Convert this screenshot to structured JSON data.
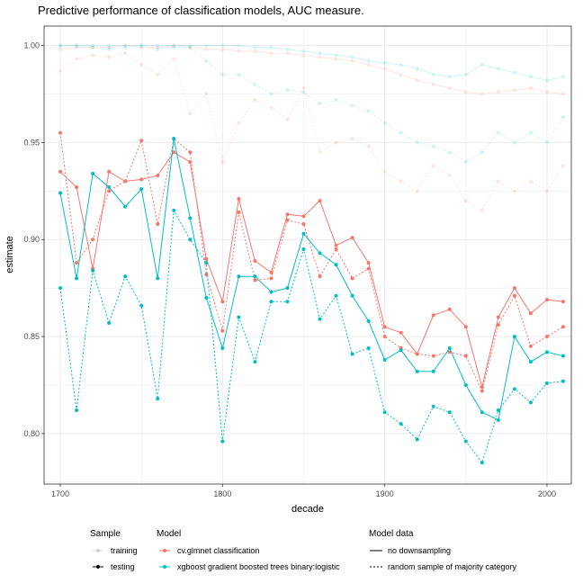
{
  "colors": {
    "red": "#F8766D",
    "teal": "#00BFC4",
    "grid": "#ebebeb",
    "panel_border": "#333333"
  },
  "chart_data": {
    "type": "line",
    "title": "Predictive performance of classification models, AUC measure.",
    "xlabel": "decade",
    "ylabel": "estimate",
    "xlim": [
      1690,
      2015
    ],
    "ylim": [
      0.774,
      1.01
    ],
    "xticks": [
      "1700",
      "1800",
      "1900",
      "2000"
    ],
    "yticks": [
      "0.80",
      "0.85",
      "0.90",
      "0.95",
      "1.00"
    ],
    "grid": true,
    "legend": {
      "position": "bottom",
      "groups": [
        {
          "title": "Sample",
          "items": [
            "training",
            "testing"
          ]
        },
        {
          "title": "Model",
          "items": [
            "cv.glmnet classification",
            "xgboost gradient boosted trees binary:logistic"
          ]
        },
        {
          "title": "Model data",
          "items": [
            "no downsampling",
            "random sample of majority category"
          ]
        }
      ]
    },
    "x": [
      1700,
      1710,
      1720,
      1730,
      1740,
      1750,
      1760,
      1770,
      1780,
      1790,
      1800,
      1810,
      1820,
      1830,
      1840,
      1850,
      1860,
      1870,
      1880,
      1890,
      1900,
      1910,
      1920,
      1930,
      1940,
      1950,
      1960,
      1970,
      1980,
      1990,
      2000,
      2010
    ],
    "series": [
      {
        "model": "cv.glmnet classification",
        "sample": "training",
        "data": "no downsampling",
        "values": [
          0.998,
          0.999,
          0.999,
          0.999,
          1.0,
          0.999,
          0.999,
          1.0,
          0.999,
          0.998,
          0.998,
          0.997,
          0.997,
          0.996,
          0.996,
          0.995,
          0.994,
          0.993,
          0.992,
          0.99,
          0.988,
          0.985,
          0.982,
          0.98,
          0.978,
          0.976,
          0.975,
          0.976,
          0.977,
          0.978,
          0.976,
          0.975
        ]
      },
      {
        "model": "cv.glmnet classification",
        "sample": "training",
        "data": "random sample of majority category",
        "values": [
          0.987,
          0.993,
          0.995,
          0.994,
          0.996,
          0.99,
          0.985,
          0.993,
          0.965,
          0.975,
          0.94,
          0.96,
          0.972,
          0.968,
          0.962,
          0.978,
          0.945,
          0.95,
          0.952,
          0.948,
          0.935,
          0.93,
          0.925,
          0.938,
          0.933,
          0.92,
          0.915,
          0.93,
          0.925,
          0.93,
          0.925,
          0.938
        ]
      },
      {
        "model": "xgboost gradient boosted trees binary:logistic",
        "sample": "training",
        "data": "no downsampling",
        "values": [
          1.0,
          1.0,
          1.0,
          1.0,
          1.0,
          1.0,
          1.0,
          1.0,
          1.0,
          1.0,
          1.0,
          1.0,
          0.999,
          0.999,
          0.998,
          0.997,
          0.996,
          0.995,
          0.994,
          0.992,
          0.991,
          0.99,
          0.988,
          0.985,
          0.984,
          0.985,
          0.99,
          0.988,
          0.986,
          0.984,
          0.982,
          0.984
        ]
      },
      {
        "model": "xgboost gradient boosted trees binary:logistic",
        "sample": "training",
        "data": "random sample of majority category",
        "values": [
          1.0,
          1.0,
          0.999,
          0.998,
          0.999,
          1.0,
          0.998,
          0.999,
          0.999,
          0.992,
          0.985,
          0.985,
          0.98,
          0.975,
          0.977,
          0.976,
          0.97,
          0.972,
          0.969,
          0.966,
          0.96,
          0.955,
          0.95,
          0.948,
          0.945,
          0.94,
          0.945,
          0.955,
          0.95,
          0.955,
          0.95,
          0.963
        ]
      },
      {
        "model": "cv.glmnet classification",
        "sample": "testing",
        "data": "no downsampling",
        "values": [
          0.935,
          0.927,
          0.885,
          0.935,
          0.93,
          0.931,
          0.933,
          0.945,
          0.94,
          0.89,
          0.868,
          0.921,
          0.889,
          0.883,
          0.913,
          0.912,
          0.92,
          0.897,
          0.901,
          0.888,
          0.855,
          0.852,
          0.841,
          0.861,
          0.864,
          0.855,
          0.824,
          0.86,
          0.875,
          0.862,
          0.869,
          0.868
        ]
      },
      {
        "model": "cv.glmnet classification",
        "sample": "testing",
        "data": "random sample of majority category",
        "values": [
          0.955,
          0.888,
          0.9,
          0.925,
          0.93,
          0.951,
          0.908,
          0.952,
          0.945,
          0.882,
          0.853,
          0.914,
          0.879,
          0.88,
          0.91,
          0.908,
          0.881,
          0.895,
          0.88,
          0.885,
          0.85,
          0.844,
          0.841,
          0.84,
          0.842,
          0.84,
          0.822,
          0.856,
          0.871,
          0.845,
          0.85,
          0.855
        ]
      },
      {
        "model": "xgboost gradient boosted trees binary:logistic",
        "sample": "testing",
        "data": "no downsampling",
        "values": [
          0.924,
          0.88,
          0.934,
          0.927,
          0.917,
          0.926,
          0.88,
          0.952,
          0.911,
          0.87,
          0.844,
          0.881,
          0.881,
          0.873,
          0.875,
          0.903,
          0.893,
          0.887,
          0.871,
          0.858,
          0.838,
          0.843,
          0.832,
          0.832,
          0.844,
          0.825,
          0.811,
          0.807,
          0.85,
          0.837,
          0.842,
          0.84
        ]
      },
      {
        "model": "xgboost gradient boosted trees binary:logistic",
        "sample": "testing",
        "data": "random sample of majority category",
        "values": [
          0.875,
          0.812,
          0.884,
          0.857,
          0.881,
          0.866,
          0.818,
          0.915,
          0.9,
          0.888,
          0.796,
          0.86,
          0.837,
          0.868,
          0.868,
          0.895,
          0.859,
          0.871,
          0.841,
          0.844,
          0.811,
          0.805,
          0.797,
          0.814,
          0.811,
          0.796,
          0.785,
          0.812,
          0.823,
          0.816,
          0.826,
          0.827
        ]
      }
    ]
  }
}
